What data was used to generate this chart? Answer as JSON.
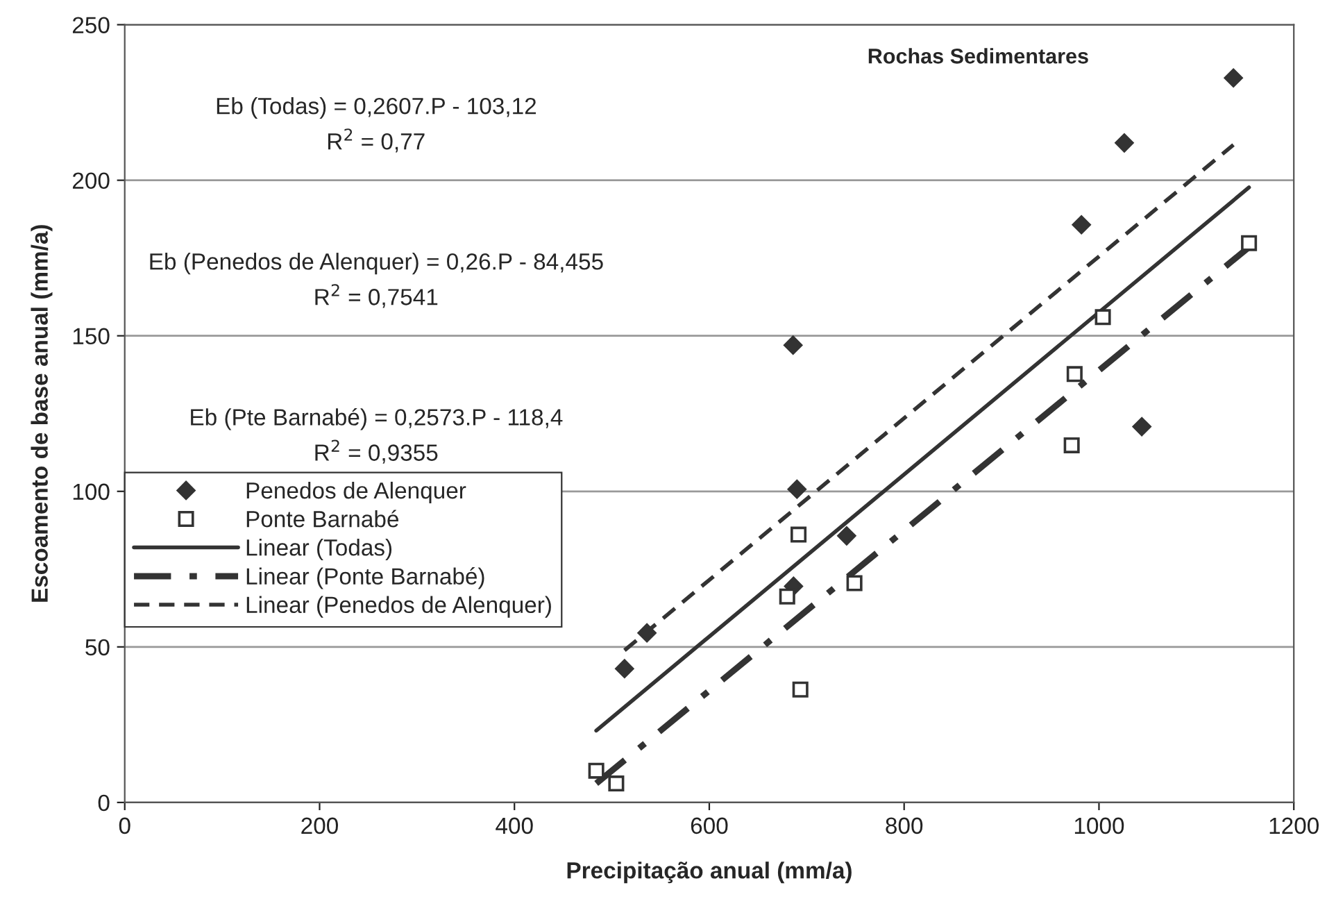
{
  "chart_data": {
    "type": "scatter",
    "title": "Rochas Sedimentares",
    "xlabel": "Precipitação anual (mm/a)",
    "ylabel": "Escoamento de base anual (mm/a)",
    "xlim": [
      0,
      1200
    ],
    "xticks": [
      0,
      200,
      400,
      600,
      800,
      1000,
      1200
    ],
    "ylim": [
      0,
      250
    ],
    "yticks": [
      0,
      50,
      100,
      150,
      200,
      250
    ],
    "grid": "y",
    "legend": "left",
    "annotations": [
      "Eb (Todas) = 0,2607.P - 103,12\nR$^{2}$ = 0,77",
      "Eb (Penedos de Alenquer) = 0,26.P - 84,455\nR$^{2}$ = 0,7541",
      "Eb (Pte Barnabé) = 0,2573.P - 118,4\nR$^{2}$ = 0,9355"
    ],
    "series": [
      {
        "name": "Penedos de Alenquer",
        "marker": "diamond",
        "color": "#333333",
        "x": [
          513,
          536,
          686,
          686.5,
          690,
          741,
          982,
          1026,
          1044,
          1138
        ],
        "values": [
          43,
          54.5,
          147,
          69.5,
          100.7,
          85.7,
          185.7,
          212,
          120.8,
          232.9
        ]
      },
      {
        "name": "Ponte Barnabé",
        "marker": "square",
        "color": "#333333",
        "x": [
          484,
          504.5,
          680,
          691.6,
          693.5,
          749,
          972,
          975,
          1004,
          1154
        ],
        "values": [
          10.2,
          6.1,
          66.2,
          86.1,
          36.3,
          70.5,
          114.8,
          137.7,
          156,
          179.8
        ]
      },
      {
        "name": "Linear (Todas)",
        "type": "line",
        "line_style": "solid",
        "color": "#333333",
        "x": [
          484,
          1154
        ],
        "values": [
          23.1,
          197.7
        ]
      },
      {
        "name": "Linear (Ponte Barnabé)",
        "type": "line",
        "line_style": "dashdot",
        "color": "#333333",
        "x": [
          484,
          1154
        ],
        "values": [
          6.1,
          178.5
        ]
      },
      {
        "name": "Linear (Penedos de Alenquer)",
        "type": "line",
        "line_style": "dashed",
        "color": "#333333",
        "x": [
          513,
          1138
        ],
        "values": [
          48.9,
          211.4
        ]
      }
    ]
  }
}
